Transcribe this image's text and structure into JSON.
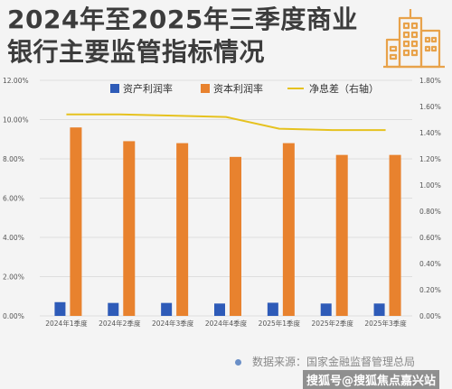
{
  "header": {
    "title_line1": "2024年至2025年三季度商业",
    "title_line2": "银行主要监管指标情况"
  },
  "footer": {
    "source": "数据来源：国家金融监督管理总局",
    "watermark": "搜狐号@搜狐焦点嘉兴站"
  },
  "colors": {
    "asset_bar": "#2e5bb8",
    "capital_bar": "#e8822e",
    "nim_line": "#e6c21f",
    "title": "#3c3c3c"
  },
  "chart_data": {
    "type": "bar",
    "categories": [
      "2024年1季度",
      "2024年2季度",
      "2024年3季度",
      "2024年4季度",
      "2025年1季度",
      "2025年2季度",
      "2025年3季度"
    ],
    "series": [
      {
        "name": "资产利润率",
        "axis": "left",
        "type": "bar",
        "values": [
          0.007,
          0.0066,
          0.0066,
          0.0063,
          0.0067,
          0.0063,
          0.0063
        ]
      },
      {
        "name": "资本利润率",
        "axis": "left",
        "type": "bar",
        "values": [
          0.096,
          0.089,
          0.088,
          0.081,
          0.088,
          0.082,
          0.082
        ]
      },
      {
        "name": "净息差（右轴）",
        "axis": "right",
        "type": "line",
        "values": [
          0.0154,
          0.0154,
          0.0153,
          0.0152,
          0.0143,
          0.0142,
          0.0142
        ]
      }
    ],
    "left_axis": {
      "ylim": [
        0,
        0.12
      ],
      "ticks": [
        "0.00%",
        "2.00%",
        "4.00%",
        "6.00%",
        "8.00%",
        "10.00%",
        "12.00%"
      ]
    },
    "right_axis": {
      "ylim": [
        0,
        0.018
      ],
      "ticks": [
        "0.00%",
        "0.20%",
        "0.40%",
        "0.60%",
        "0.80%",
        "1.00%",
        "1.20%",
        "1.40%",
        "1.60%",
        "1.80%"
      ]
    },
    "legend_placement": "top",
    "grid": true
  }
}
